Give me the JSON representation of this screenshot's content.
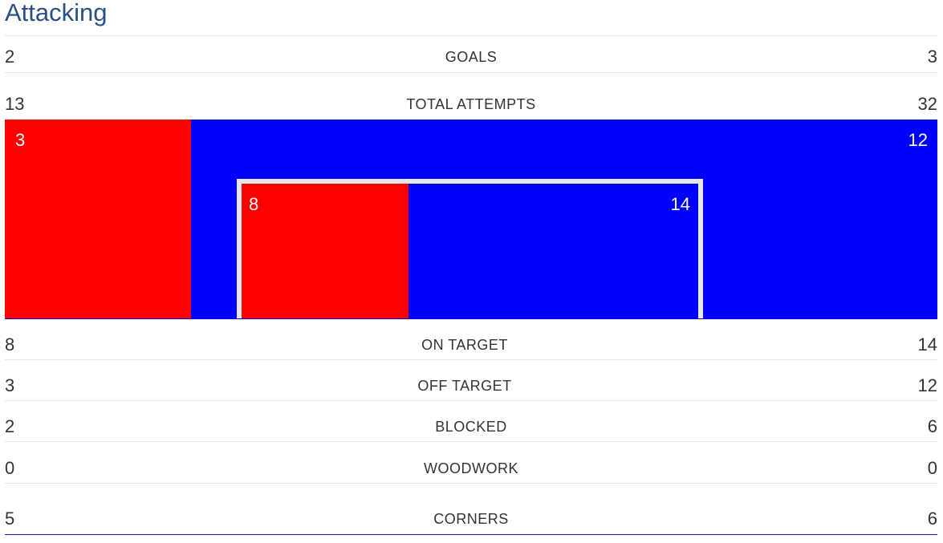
{
  "section_title": "Attacking",
  "stats": {
    "goals": {
      "label": "GOALS",
      "home": "2",
      "away": "3"
    },
    "total_attempts": {
      "label": "TOTAL ATTEMPTS",
      "home": "13",
      "away": "32"
    },
    "on_target": {
      "label": "ON TARGET",
      "home": "8",
      "away": "14"
    },
    "off_target": {
      "label": "OFF TARGET",
      "home": "3",
      "away": "12"
    },
    "blocked": {
      "label": "BLOCKED",
      "home": "2",
      "away": "6"
    },
    "woodwork": {
      "label": "WOODWORK",
      "home": "0",
      "away": "0"
    },
    "corners": {
      "label": "CORNERS",
      "home": "5",
      "away": "6"
    }
  },
  "goal_graphic": {
    "outer_home": "3",
    "outer_away": "12",
    "inner_home": "8",
    "inner_away": "14",
    "home_color": "#ff0000",
    "away_color": "#0000ff"
  }
}
